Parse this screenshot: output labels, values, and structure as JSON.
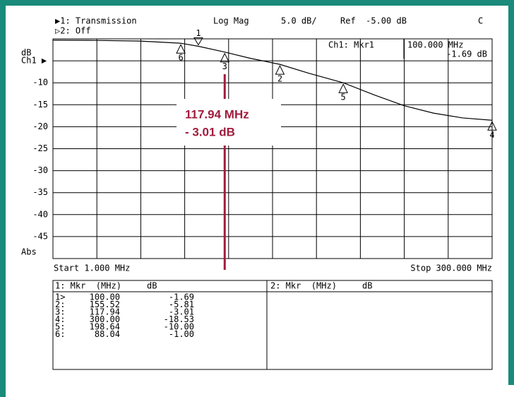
{
  "chart_data": {
    "type": "line",
    "header": {
      "channel": "▶1: Transmission",
      "format": "Log Mag",
      "scale": "5.0 dB/",
      "ref": "Ref  -5.00 dB",
      "flag": "C",
      "channel2": "▷2: Off"
    },
    "y_unit": "dB",
    "ref_label": "Ch1 ▶",
    "abs_label": "Abs",
    "start_label": "Start 1.000 MHz",
    "stop_label": "Stop 300.000 MHz",
    "readout": {
      "title": "Ch1: Mkr1",
      "freq": "100.000 MHz",
      "level": "-1.69 dB"
    },
    "annotation": {
      "line1": "117.94 MHz",
      "line2": "- 3.01 dB",
      "color": "#a01c3c"
    },
    "color": "#000000",
    "x": [
      1,
      30,
      60,
      88.04,
      100,
      117.94,
      135,
      155.52,
      175,
      198.64,
      220,
      240,
      260,
      280,
      300
    ],
    "values": [
      -0.3,
      -0.35,
      -0.5,
      -1.0,
      -1.69,
      -3.01,
      -4.4,
      -5.81,
      -7.8,
      -10.0,
      -12.8,
      -15.2,
      -16.9,
      -18.0,
      -18.53
    ],
    "xlim": [
      1,
      300
    ],
    "ylim": [
      -50,
      0
    ],
    "yticks": [
      -10,
      -15,
      -20,
      -25,
      -30,
      -35,
      -40,
      -45
    ],
    "grid": true,
    "markers": [
      {
        "label": "1",
        "mhz": 100.0,
        "db": -1.69
      },
      {
        "label": "2",
        "mhz": 155.52,
        "db": -5.81
      },
      {
        "label": "3",
        "mhz": 117.94,
        "db": -3.01
      },
      {
        "label": "4",
        "mhz": 300.0,
        "db": -18.53
      },
      {
        "label": "5",
        "mhz": 198.64,
        "db": -10.0
      },
      {
        "label": "6",
        "mhz": 88.04,
        "db": -1.0
      }
    ],
    "table": {
      "header1": "1: Mkr  (MHz)     dB",
      "header2": "2: Mkr  (MHz)     dB",
      "rows": [
        [
          "1>",
          "100.00",
          "-1.69"
        ],
        [
          "2:",
          "155.52",
          "-5.81"
        ],
        [
          "3:",
          "117.94",
          "-3.01"
        ],
        [
          "4:",
          "300.00",
          "-18.53"
        ],
        [
          "5:",
          "198.64",
          "-10.00"
        ],
        [
          "6:",
          "88.04",
          "-1.00"
        ]
      ]
    }
  }
}
